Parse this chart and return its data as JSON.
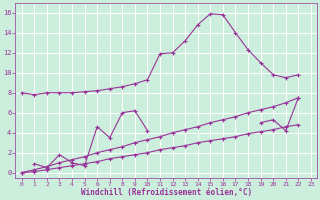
{
  "xlabel": "Windchill (Refroidissement éolien,°C)",
  "background_color": "#cceedd",
  "grid_color": "#ffffff",
  "line_color": "#993399",
  "marker": "+",
  "xlim": [
    -0.5,
    23.5
  ],
  "ylim": [
    -0.5,
    17
  ],
  "xticks": [
    0,
    1,
    2,
    3,
    4,
    5,
    6,
    7,
    8,
    9,
    10,
    11,
    12,
    13,
    14,
    15,
    16,
    17,
    18,
    19,
    20,
    21,
    22,
    23
  ],
  "yticks": [
    0,
    2,
    4,
    6,
    8,
    10,
    12,
    14,
    16
  ],
  "series": {
    "upper": {
      "x": [
        0,
        1,
        2,
        3,
        4,
        5,
        6,
        7,
        8,
        9,
        10,
        11,
        12,
        13,
        14,
        15,
        16,
        17,
        18,
        19,
        20,
        21,
        22
      ],
      "y": [
        8.0,
        7.8,
        8.0,
        8.0,
        8.0,
        8.1,
        8.2,
        8.4,
        8.6,
        8.9,
        9.3,
        11.9,
        12.0,
        13.2,
        14.8,
        15.9,
        15.8,
        14.0,
        12.3,
        11.0,
        9.8,
        9.5,
        9.8
      ]
    },
    "zigzag": {
      "x": [
        1,
        2,
        3,
        4,
        5,
        6,
        7,
        8,
        9,
        10
      ],
      "y": [
        0.9,
        0.5,
        1.8,
        1.0,
        0.7,
        4.6,
        3.5,
        6.0,
        6.2,
        4.2
      ]
    },
    "diag1": {
      "x": [
        0,
        1,
        2,
        3,
        4,
        5,
        6,
        7,
        8,
        9,
        10,
        11,
        12,
        13,
        14,
        15,
        16,
        17,
        18,
        19,
        20,
        21,
        22
      ],
      "y": [
        0.0,
        0.3,
        0.6,
        1.0,
        1.3,
        1.6,
        2.0,
        2.3,
        2.6,
        3.0,
        3.3,
        3.6,
        4.0,
        4.3,
        4.6,
        5.0,
        5.3,
        5.6,
        6.0,
        6.3,
        6.6,
        7.0,
        7.5
      ]
    },
    "diag2": {
      "x": [
        0,
        1,
        2,
        3,
        4,
        5,
        6,
        7,
        8,
        9,
        10,
        11,
        12,
        13,
        14,
        15,
        16,
        17,
        18,
        19,
        20,
        21,
        22
      ],
      "y": [
        0.0,
        0.1,
        0.3,
        0.5,
        0.7,
        0.9,
        1.1,
        1.4,
        1.6,
        1.8,
        2.0,
        2.3,
        2.5,
        2.7,
        3.0,
        3.2,
        3.4,
        3.6,
        3.9,
        4.1,
        4.3,
        4.6,
        4.8
      ]
    },
    "right_dip": {
      "x": [
        19,
        20,
        21,
        22
      ],
      "y": [
        5.0,
        5.3,
        4.2,
        7.5
      ]
    }
  }
}
